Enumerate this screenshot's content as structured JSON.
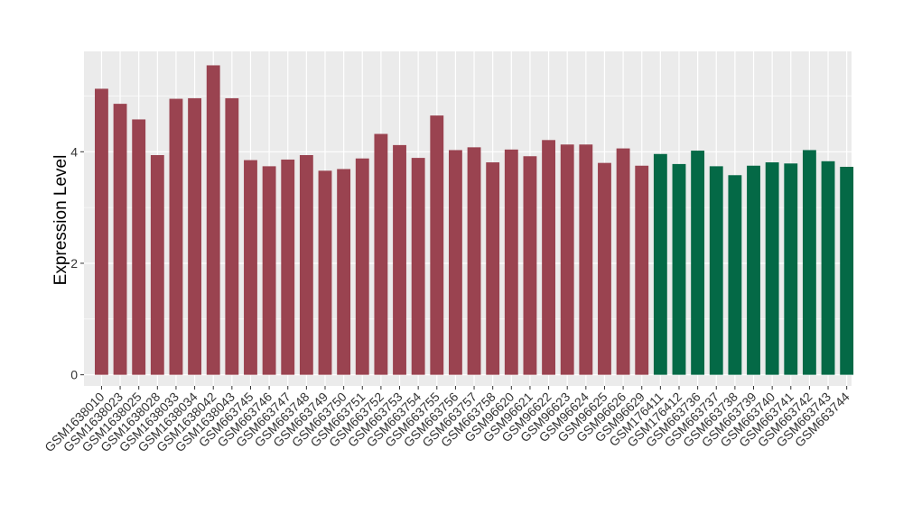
{
  "colors": {
    "group1": "#9a4350",
    "group2": "#046946",
    "panel": "#ebebeb",
    "grid": "#ffffff"
  },
  "chart_data": {
    "type": "bar",
    "xlabel": "",
    "ylabel": "Expression Level",
    "ylim": [
      -0.2,
      5.8
    ],
    "yticks": [
      0,
      2,
      4
    ],
    "grid": true,
    "categories": [
      "GSM1638010",
      "GSM1638023",
      "GSM1638025",
      "GSM1638028",
      "GSM1638033",
      "GSM1638034",
      "GSM1638042",
      "GSM1638043",
      "GSM663745",
      "GSM663746",
      "GSM663747",
      "GSM663748",
      "GSM663749",
      "GSM663750",
      "GSM663751",
      "GSM663752",
      "GSM663753",
      "GSM663754",
      "GSM663755",
      "GSM663756",
      "GSM663757",
      "GSM663758",
      "GSM96620",
      "GSM96621",
      "GSM96622",
      "GSM96623",
      "GSM96624",
      "GSM96625",
      "GSM96626",
      "GSM96629",
      "GSM176411",
      "GSM176412",
      "GSM663736",
      "GSM663737",
      "GSM663738",
      "GSM663739",
      "GSM663740",
      "GSM663741",
      "GSM663742",
      "GSM663743",
      "GSM663744"
    ],
    "values": [
      5.13,
      4.86,
      4.58,
      3.94,
      4.95,
      4.96,
      5.55,
      4.96,
      3.85,
      3.74,
      3.86,
      3.94,
      3.66,
      3.69,
      3.88,
      4.32,
      4.12,
      3.89,
      4.65,
      4.03,
      4.08,
      3.81,
      4.04,
      3.92,
      4.21,
      4.13,
      4.13,
      3.8,
      4.06,
      3.75,
      3.96,
      3.78,
      4.02,
      3.74,
      3.58,
      3.75,
      3.81,
      3.79,
      4.03,
      3.83,
      3.73
    ],
    "groups": [
      1,
      1,
      1,
      1,
      1,
      1,
      1,
      1,
      1,
      1,
      1,
      1,
      1,
      1,
      1,
      1,
      1,
      1,
      1,
      1,
      1,
      1,
      1,
      1,
      1,
      1,
      1,
      1,
      1,
      1,
      2,
      2,
      2,
      2,
      2,
      2,
      2,
      2,
      2,
      2,
      2
    ]
  }
}
